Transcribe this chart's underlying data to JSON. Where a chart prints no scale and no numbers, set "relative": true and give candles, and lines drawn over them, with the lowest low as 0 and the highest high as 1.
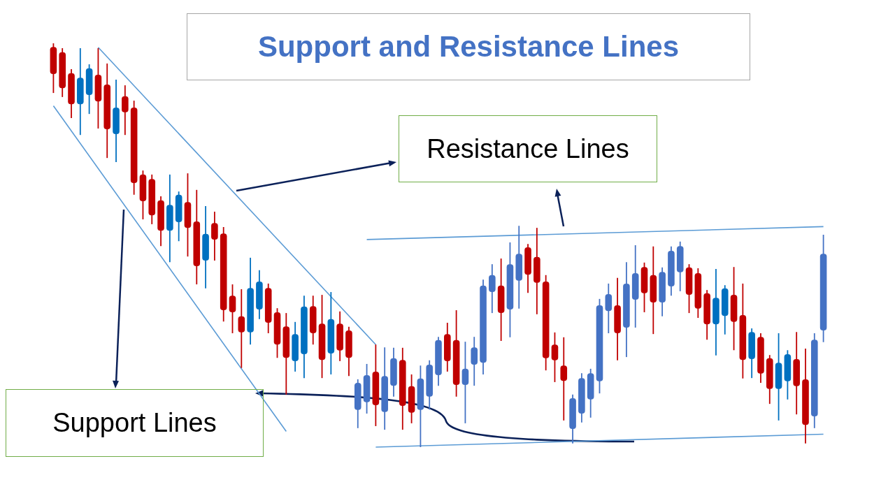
{
  "chart_data": {
    "type": "candlestick",
    "title": "Support and Resistance Lines",
    "relative": true,
    "tick_labels": false,
    "annotations": [
      "Resistance Lines",
      "Support Lines"
    ],
    "categories": [
      null,
      null,
      null,
      null,
      null,
      null,
      null,
      null,
      null,
      null,
      null,
      null,
      null,
      null,
      null,
      null,
      null,
      null,
      null,
      null,
      null,
      null,
      null,
      null,
      null,
      null,
      null,
      null,
      null,
      null,
      null,
      null,
      null,
      null,
      null,
      null,
      null,
      null,
      null,
      null,
      null,
      null,
      null,
      null,
      null,
      null,
      null,
      null,
      null,
      null,
      null,
      null,
      null,
      null,
      null,
      null,
      null,
      null,
      null,
      null,
      null,
      null,
      null,
      null,
      null,
      null,
      null,
      null,
      null,
      null,
      null,
      null,
      null,
      null,
      null,
      null,
      null,
      null,
      null,
      null,
      null,
      null,
      null,
      null,
      null,
      null,
      null
    ],
    "ohlc": [
      [
        0.991,
        1,
        0.877,
        0.924
      ],
      [
        0.978,
        0.988,
        0.867,
        0.889
      ],
      [
        0.926,
        0.936,
        0.815,
        0.849
      ],
      [
        0.849,
        0.988,
        0.773,
        0.915
      ],
      [
        0.872,
        0.948,
        0.825,
        0.938
      ],
      [
        0.922,
        0.988,
        0.789,
        0.856
      ],
      [
        0.898,
        0.95,
        0.716,
        0.787
      ],
      [
        0.775,
        0.91,
        0.706,
        0.841
      ],
      [
        0.869,
        0.896,
        0.773,
        0.829
      ],
      [
        0.841,
        0.858,
        0.625,
        0.654
      ],
      [
        0.675,
        0.685,
        0.564,
        0.609
      ],
      [
        0.664,
        0.675,
        0.552,
        0.574
      ],
      [
        0.611,
        0.621,
        0.498,
        0.536
      ],
      [
        0.536,
        0.675,
        0.458,
        0.6
      ],
      [
        0.557,
        0.633,
        0.51,
        0.625
      ],
      [
        0.607,
        0.678,
        0.472,
        0.543
      ],
      [
        0.559,
        0.637,
        0.403,
        0.448
      ],
      [
        0.462,
        0.597,
        0.393,
        0.528
      ],
      [
        0.555,
        0.583,
        0.462,
        0.514
      ],
      [
        0.529,
        0.545,
        0.311,
        0.339
      ],
      [
        0.375,
        0.403,
        0.282,
        0.334
      ],
      [
        0.324,
        0.391,
        0.196,
        0.284
      ],
      [
        0.284,
        0.469,
        0.254,
        0.394
      ],
      [
        0.341,
        0.438,
        0.317,
        0.41
      ],
      [
        0.394,
        0.405,
        0.282,
        0.308
      ],
      [
        0.334,
        0.344,
        0.221,
        0.254
      ],
      [
        0.299,
        0.332,
        0.13,
        0.221
      ],
      [
        0.213,
        0.31,
        0.187,
        0.28
      ],
      [
        0.23,
        0.375,
        0.171,
        0.348
      ],
      [
        0.349,
        0.375,
        0.254,
        0.282
      ],
      [
        0.306,
        0.377,
        0.171,
        0.216
      ],
      [
        0.232,
        0.384,
        0.18,
        0.317
      ],
      [
        0.306,
        0.336,
        0.213,
        0.239
      ],
      [
        0.289,
        0.298,
        0.176,
        0.221
      ],
      [
        0.092,
        0.168,
        0.047,
        0.159
      ],
      [
        0.111,
        0.206,
        0.083,
        0.178
      ],
      [
        0.187,
        0.254,
        0.052,
        0.104
      ],
      [
        0.087,
        0.247,
        0.043,
        0.176
      ],
      [
        0.152,
        0.246,
        0.125,
        0.22
      ],
      [
        0.216,
        0.246,
        0.043,
        0.102
      ],
      [
        0.151,
        0.18,
        0.059,
        0.085
      ],
      [
        0.092,
        0.202,
        0,
        0.17
      ],
      [
        0.125,
        0.215,
        0.093,
        0.204
      ],
      [
        0.178,
        0.273,
        0.152,
        0.265
      ],
      [
        0.28,
        0.308,
        0.187,
        0.213
      ],
      [
        0.265,
        0.339,
        0.125,
        0.154
      ],
      [
        0.154,
        0.261,
        0.059,
        0.194
      ],
      [
        0.204,
        0.273,
        0.152,
        0.247
      ],
      [
        0.209,
        0.415,
        0.18,
        0.4
      ],
      [
        0.384,
        0.453,
        0.332,
        0.426
      ],
      [
        0.4,
        0.467,
        0.263,
        0.332
      ],
      [
        0.341,
        0.507,
        0.272,
        0.453
      ],
      [
        0.412,
        0.548,
        0.343,
        0.479
      ],
      [
        0.495,
        0.503,
        0.382,
        0.427
      ],
      [
        0.471,
        0.543,
        0.329,
        0.407
      ],
      [
        0.41,
        0.426,
        0.19,
        0.22
      ],
      [
        0.254,
        0.284,
        0.161,
        0.215
      ],
      [
        0.202,
        0.272,
        0.066,
        0.164
      ],
      [
        0.045,
        0.13,
        0.009,
        0.121
      ],
      [
        0.083,
        0.183,
        0.061,
        0.171
      ],
      [
        0.118,
        0.194,
        0.073,
        0.183
      ],
      [
        0.163,
        0.367,
        0.133,
        0.351
      ],
      [
        0.337,
        0.405,
        0.282,
        0.379
      ],
      [
        0.351,
        0.419,
        0.215,
        0.282
      ],
      [
        0.296,
        0.458,
        0.223,
        0.405
      ],
      [
        0.365,
        0.5,
        0.296,
        0.431
      ],
      [
        0.446,
        0.457,
        0.334,
        0.381
      ],
      [
        0.426,
        0.497,
        0.28,
        0.358
      ],
      [
        0.358,
        0.445,
        0.324,
        0.434
      ],
      [
        0.398,
        0.497,
        0.375,
        0.486
      ],
      [
        0.433,
        0.509,
        0.386,
        0.498
      ],
      [
        0.445,
        0.453,
        0.332,
        0.377
      ],
      [
        0.431,
        0.443,
        0.32,
        0.343
      ],
      [
        0.381,
        0.389,
        0.266,
        0.304
      ],
      [
        0.304,
        0.441,
        0.227,
        0.37
      ],
      [
        0.325,
        0.401,
        0.279,
        0.393
      ],
      [
        0.377,
        0.446,
        0.24,
        0.31
      ],
      [
        0.327,
        0.405,
        0.17,
        0.216
      ],
      [
        0.218,
        0.294,
        0.171,
        0.285
      ],
      [
        0.273,
        0.282,
        0.159,
        0.182
      ],
      [
        0.22,
        0.228,
        0.107,
        0.144
      ],
      [
        0.144,
        0.282,
        0.066,
        0.209
      ],
      [
        0.163,
        0.24,
        0.118,
        0.23
      ],
      [
        0.218,
        0.285,
        0.081,
        0.151
      ],
      [
        0.168,
        0.244,
        0.009,
        0.055
      ],
      [
        0.076,
        0.282,
        0.047,
        0.266
      ],
      [
        0.289,
        0.526,
        0.26,
        0.479
      ]
    ],
    "colors": [
      "#c00000",
      "#c00000",
      "#c00000",
      "#0070c0",
      "#0070c0",
      "#c00000",
      "#c00000",
      "#0070c0",
      "#c00000",
      "#c00000",
      "#c00000",
      "#c00000",
      "#c00000",
      "#0070c0",
      "#0070c0",
      "#c00000",
      "#c00000",
      "#0070c0",
      "#c00000",
      "#c00000",
      "#c00000",
      "#c00000",
      "#0070c0",
      "#0070c0",
      "#c00000",
      "#c00000",
      "#c00000",
      "#0070c0",
      "#0070c0",
      "#c00000",
      "#c00000",
      "#0070c0",
      "#c00000",
      "#c00000",
      "#4472c4",
      "#4472c4",
      "#c00000",
      "#4472c4",
      "#4472c4",
      "#c00000",
      "#c00000",
      "#4472c4",
      "#4472c4",
      "#4472c4",
      "#c00000",
      "#c00000",
      "#4472c4",
      "#4472c4",
      "#4472c4",
      "#4472c4",
      "#c00000",
      "#4472c4",
      "#4472c4",
      "#c00000",
      "#c00000",
      "#c00000",
      "#c00000",
      "#c00000",
      "#4472c4",
      "#4472c4",
      "#4472c4",
      "#4472c4",
      "#4472c4",
      "#c00000",
      "#4472c4",
      "#4472c4",
      "#c00000",
      "#c00000",
      "#4472c4",
      "#4472c4",
      "#4472c4",
      "#c00000",
      "#c00000",
      "#c00000",
      "#0070c0",
      "#0070c0",
      "#c00000",
      "#c00000",
      "#0070c0",
      "#c00000",
      "#c00000",
      "#0070c0",
      "#0070c0",
      "#c00000",
      "#c00000",
      "#4472c4",
      "#4472c4"
    ],
    "series": [
      {
        "type": "line",
        "color": "#5b9bd5",
        "values": [
          null,
          null,
          null,
          null,
          null,
          0.99,
          null,
          null,
          null,
          null,
          null,
          null,
          null,
          null,
          null,
          null,
          null,
          null,
          null,
          null,
          null,
          null,
          null,
          null,
          null,
          null,
          null,
          null,
          null,
          null,
          null,
          null,
          null,
          null,
          null,
          null,
          0.254,
          null,
          null,
          null,
          null,
          null,
          null,
          null,
          null,
          null,
          null,
          null,
          null,
          null,
          null,
          null,
          null,
          null,
          null,
          null,
          null,
          null,
          null,
          null,
          null,
          null,
          null,
          null,
          null,
          null,
          null,
          null,
          null,
          null,
          null,
          null,
          null,
          null,
          null,
          null,
          null,
          null,
          null,
          null,
          null,
          null,
          null,
          null,
          null,
          null,
          null
        ]
      },
      {
        "type": "line",
        "color": "#5b9bd5",
        "values": [
          0.845,
          null,
          null,
          null,
          null,
          null,
          null,
          null,
          null,
          null,
          null,
          null,
          null,
          null,
          null,
          null,
          null,
          null,
          null,
          null,
          null,
          null,
          null,
          null,
          null,
          null,
          0.039,
          null,
          null,
          null,
          null,
          null,
          null,
          null,
          null,
          null,
          null,
          null,
          null,
          null,
          null,
          null,
          null,
          null,
          null,
          null,
          null,
          null,
          null,
          null,
          null,
          null,
          null,
          null,
          null,
          null,
          null,
          null,
          null,
          null,
          null,
          null,
          null,
          null,
          null,
          null,
          null,
          null,
          null,
          null,
          null,
          null,
          null,
          null,
          null,
          null,
          null,
          null,
          null,
          null,
          null,
          null,
          null,
          null,
          null,
          null,
          null
        ]
      },
      {
        "type": "line",
        "color": "#5b9bd5",
        "values": [
          null,
          null,
          null,
          null,
          null,
          null,
          null,
          null,
          null,
          null,
          null,
          null,
          null,
          null,
          null,
          null,
          null,
          null,
          null,
          null,
          null,
          null,
          null,
          null,
          null,
          null,
          null,
          null,
          null,
          null,
          null,
          null,
          null,
          null,
          null,
          0.514,
          null,
          null,
          null,
          null,
          null,
          null,
          null,
          null,
          null,
          null,
          null,
          null,
          null,
          null,
          null,
          null,
          null,
          null,
          null,
          null,
          null,
          null,
          null,
          null,
          null,
          null,
          null,
          null,
          null,
          null,
          null,
          null,
          null,
          null,
          null,
          null,
          null,
          null,
          null,
          null,
          null,
          null,
          null,
          null,
          null,
          null,
          null,
          null,
          null,
          null,
          0.546
        ]
      },
      {
        "type": "line",
        "color": "#5b9bd5",
        "values": [
          null,
          null,
          null,
          null,
          null,
          null,
          null,
          null,
          null,
          null,
          null,
          null,
          null,
          null,
          null,
          null,
          null,
          null,
          null,
          null,
          null,
          null,
          null,
          null,
          null,
          null,
          null,
          null,
          null,
          null,
          null,
          null,
          null,
          null,
          null,
          null,
          0,
          null,
          null,
          null,
          null,
          null,
          null,
          null,
          null,
          null,
          null,
          null,
          null,
          null,
          null,
          null,
          null,
          null,
          null,
          null,
          null,
          null,
          null,
          null,
          null,
          null,
          null,
          null,
          null,
          null,
          null,
          null,
          null,
          null,
          null,
          null,
          null,
          null,
          null,
          null,
          null,
          null,
          null,
          null,
          null,
          null,
          null,
          null,
          null,
          null,
          0.032
        ]
      }
    ]
  }
}
